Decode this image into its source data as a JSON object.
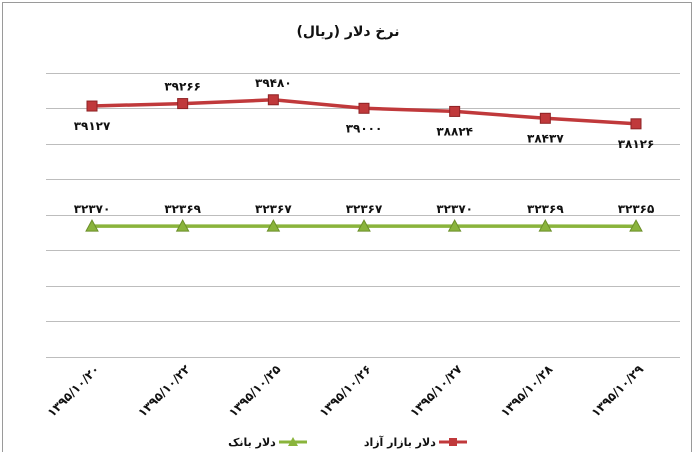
{
  "chart_data": {
    "type": "line",
    "title": "نرخ دلار (ریال)",
    "categories": [
      "۱۳۹۵/۱۰/۲۰",
      "۱۳۹۵/۱۰/۲۲",
      "۱۳۹۵/۱۰/۲۵",
      "۱۳۹۵/۱۰/۲۶",
      "۱۳۹۵/۱۰/۲۷",
      "۱۳۹۵/۱۰/۲۸",
      "۱۳۹۵/۱۰/۲۹"
    ],
    "series": [
      {
        "name": "دلار بازار آزاد",
        "color": "#c0393b",
        "marker": "square",
        "values": [
          39127,
          39266,
          39480,
          39000,
          38824,
          38437,
          38126
        ],
        "labels": [
          "۳۹۱۲۷",
          "۳۹۲۶۶",
          "۳۹۴۸۰",
          "۳۹۰۰۰",
          "۳۸۸۲۴",
          "۳۸۴۳۷",
          "۳۸۱۲۶"
        ],
        "label_pos": [
          "below",
          "above",
          "above",
          "below",
          "below",
          "below",
          "below"
        ]
      },
      {
        "name": "دلار بانک",
        "color": "#8ab43c",
        "marker": "triangle",
        "values": [
          32370,
          32369,
          32367,
          32367,
          32370,
          32369,
          32365
        ],
        "labels": [
          "۳۲۳۷۰",
          "۳۲۳۶۹",
          "۳۲۳۶۷",
          "۳۲۳۶۷",
          "۳۲۳۷۰",
          "۳۲۳۶۹",
          "۳۲۳۶۵"
        ],
        "label_pos": [
          "above",
          "above",
          "above",
          "above",
          "above",
          "above",
          "above"
        ]
      }
    ],
    "ylim": [
      25000,
      42000
    ],
    "y_gridlines": [
      25000,
      27000,
      29000,
      31000,
      33000,
      35000,
      37000,
      39000,
      41000
    ],
    "y_axis_labels_shown": false,
    "grid": true,
    "legend": "bottom"
  }
}
